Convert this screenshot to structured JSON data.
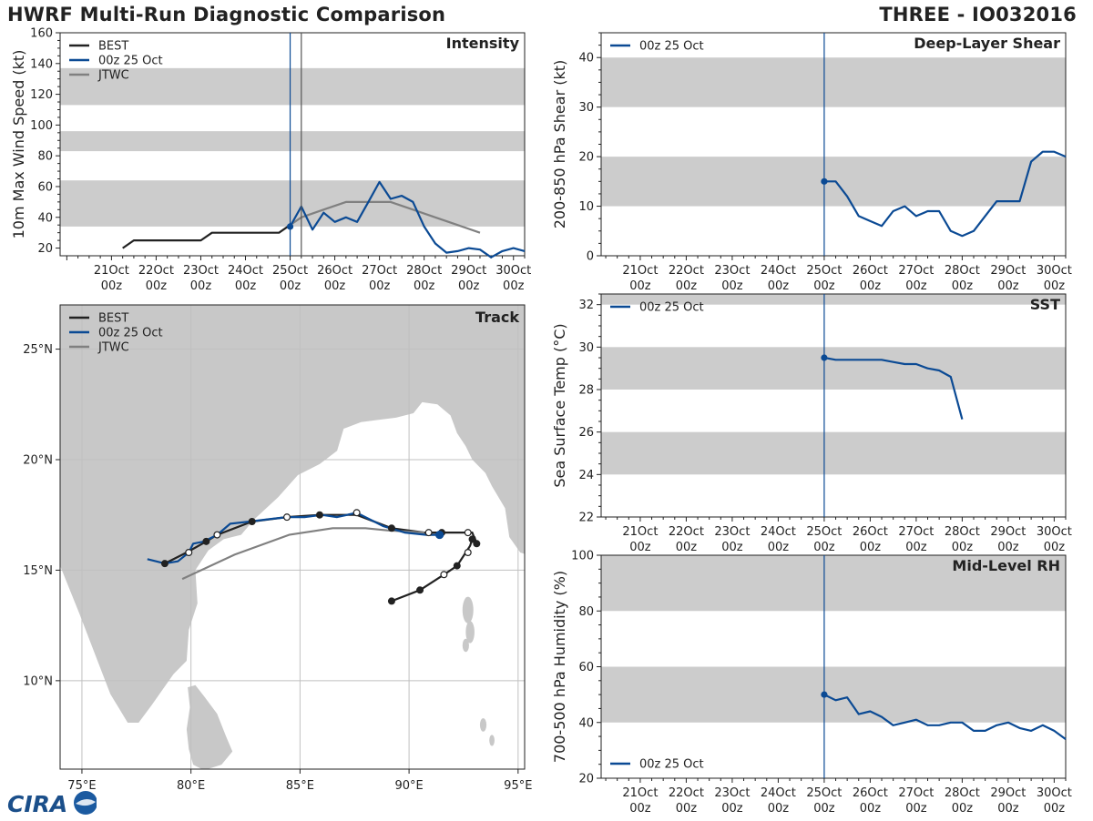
{
  "header": {
    "title_left": "HWRF Multi-Run Diagnostic Comparison",
    "title_right": "THREE - IO032016"
  },
  "logo": {
    "text": "CIRA"
  },
  "colors": {
    "best": "#222222",
    "run": "#0b4a94",
    "jtwc": "#808080",
    "band": "#cccccc",
    "land": "#c8c8c8",
    "grid": "#c0c0c0"
  },
  "time_ticks": [
    {
      "top": "21Oct",
      "bottom": "00z"
    },
    {
      "top": "22Oct",
      "bottom": "00z"
    },
    {
      "top": "23Oct",
      "bottom": "00z"
    },
    {
      "top": "24Oct",
      "bottom": "00z"
    },
    {
      "top": "25Oct",
      "bottom": "00z"
    },
    {
      "top": "26Oct",
      "bottom": "00z"
    },
    {
      "top": "27Oct",
      "bottom": "00z"
    },
    {
      "top": "28Oct",
      "bottom": "00z"
    },
    {
      "top": "29Oct",
      "bottom": "00z"
    },
    {
      "top": "30Oct",
      "bottom": "00z"
    }
  ],
  "chart_data": [
    {
      "id": "intensity",
      "type": "line",
      "title": "Intensity",
      "ylabel": "10m Max Wind Speed (kt)",
      "xlim": [
        19.85,
        30.25
      ],
      "ylim": [
        15,
        160
      ],
      "yticks": [
        20,
        40,
        60,
        80,
        100,
        120,
        140,
        160
      ],
      "bands": [
        [
          34,
          64
        ],
        [
          83,
          96
        ],
        [
          113,
          137
        ]
      ],
      "vlines": [
        25.0,
        25.25
      ],
      "legend": [
        "BEST",
        "00z 25 Oct",
        "JTWC"
      ],
      "series": [
        {
          "name": "BEST",
          "style": "best",
          "x": [
            21.25,
            21.5,
            21.75,
            22.0,
            22.25,
            22.5,
            22.75,
            23.0,
            23.25,
            23.5,
            23.75,
            24.0,
            24.25,
            24.5,
            24.75,
            25.0
          ],
          "y": [
            20,
            25,
            25,
            25,
            25,
            25,
            25,
            25,
            30,
            30,
            30,
            30,
            30,
            30,
            30,
            35
          ]
        },
        {
          "name": "JTWC",
          "style": "jtwc",
          "x": [
            25.0,
            25.25,
            25.75,
            26.25,
            26.75,
            27.25,
            27.75,
            28.25,
            28.75,
            29.25
          ],
          "y": [
            35,
            40,
            45,
            50,
            50,
            50,
            45,
            40,
            35,
            30
          ]
        },
        {
          "name": "00z 25 Oct",
          "style": "run",
          "marker_first": true,
          "x": [
            25.0,
            25.25,
            25.5,
            25.75,
            26.0,
            26.25,
            26.5,
            26.75,
            27.0,
            27.25,
            27.5,
            27.75,
            28.0,
            28.25,
            28.5,
            28.75,
            29.0,
            29.25,
            29.5,
            29.75,
            30.0,
            30.25
          ],
          "y": [
            34,
            47,
            32,
            43,
            37,
            40,
            37,
            50,
            63,
            52,
            54,
            50,
            34,
            23,
            17,
            18,
            20,
            19,
            14,
            18,
            20,
            18
          ]
        }
      ]
    },
    {
      "id": "track",
      "type": "line",
      "title": "Track",
      "xlim": [
        74,
        95.3
      ],
      "ylim": [
        6,
        27
      ],
      "xticks": [
        75,
        80,
        85,
        90,
        95
      ],
      "xtick_labels": [
        "75°E",
        "80°E",
        "85°E",
        "90°E",
        "95°E"
      ],
      "yticks": [
        10,
        15,
        20,
        25
      ],
      "ytick_labels": [
        "10°N",
        "15°N",
        "20°N",
        "25°N"
      ],
      "legend": [
        "BEST",
        "00z 25 Oct",
        "JTWC"
      ],
      "series": [
        {
          "name": "BEST",
          "style": "best",
          "lon": [
            89.2,
            90.5,
            91.6,
            92.2,
            92.6,
            92.8,
            92.9,
            93.0,
            93.1,
            92.9,
            92.7,
            91.5,
            90.7,
            89.2,
            87.6,
            85.9,
            84.4,
            82.8,
            81.2,
            80.7,
            79.8,
            78.8
          ],
          "lat": [
            13.6,
            14.1,
            14.8,
            15.2,
            15.8,
            16.1,
            16.4,
            16.5,
            16.2,
            16.7,
            16.7,
            16.7,
            16.7,
            16.9,
            17.5,
            17.5,
            17.4,
            17.2,
            16.6,
            16.3,
            15.8,
            15.3
          ],
          "markers": [
            [
              89.2,
              13.6,
              "f"
            ],
            [
              90.5,
              14.1,
              "f"
            ],
            [
              91.6,
              14.8,
              "o"
            ],
            [
              92.2,
              15.2,
              "f"
            ],
            [
              92.7,
              15.8,
              "o"
            ],
            [
              92.9,
              16.4,
              "f"
            ],
            [
              93.1,
              16.2,
              "f"
            ],
            [
              92.7,
              16.7,
              "o"
            ],
            [
              91.5,
              16.7,
              "f"
            ]
          ]
        },
        {
          "name": "JTWC",
          "style": "jtwc",
          "lon": [
            90.7,
            89.0,
            88.0,
            86.5,
            84.5,
            82.0,
            79.6
          ],
          "lat": [
            16.7,
            16.8,
            16.9,
            16.9,
            16.6,
            15.7,
            14.6
          ]
        },
        {
          "name": "00z 25 Oct",
          "style": "run",
          "lon": [
            91.4,
            90.8,
            89.8,
            88.8,
            87.6,
            86.7,
            86.0,
            85.2,
            84.4,
            83.5,
            82.7,
            81.8,
            81.2,
            80.6,
            80.1,
            79.9,
            79.4,
            78.8,
            78.0
          ],
          "lat": [
            16.6,
            16.6,
            16.7,
            17.0,
            17.6,
            17.4,
            17.5,
            17.4,
            17.4,
            17.3,
            17.2,
            17.1,
            16.6,
            16.3,
            16.2,
            15.8,
            15.4,
            15.3,
            15.5
          ],
          "markers": [
            [
              91.4,
              16.6,
              "r"
            ],
            [
              89.2,
              16.9,
              "f"
            ],
            [
              87.6,
              17.6,
              "o"
            ],
            [
              85.9,
              17.5,
              "f"
            ],
            [
              84.4,
              17.4,
              "o"
            ],
            [
              82.8,
              17.2,
              "f"
            ],
            [
              81.2,
              16.6,
              "o"
            ],
            [
              80.7,
              16.3,
              "f"
            ],
            [
              79.9,
              15.8,
              "o"
            ],
            [
              78.8,
              15.3,
              "f"
            ],
            [
              90.9,
              16.7,
              "o"
            ]
          ]
        }
      ]
    },
    {
      "id": "shear",
      "type": "line",
      "title": "Deep-Layer Shear",
      "ylabel": "200-850 hPa Shear (kt)",
      "xlim": [
        20.15,
        30.25
      ],
      "ylim": [
        0,
        45
      ],
      "yticks": [
        0,
        10,
        20,
        30,
        40
      ],
      "bands": [
        [
          10,
          20
        ],
        [
          30,
          40
        ]
      ],
      "vlines": [
        25.0
      ],
      "legend": [
        "00z 25 Oct"
      ],
      "series": [
        {
          "name": "00z 25 Oct",
          "style": "run",
          "marker_first": true,
          "x": [
            25.0,
            25.25,
            25.5,
            25.75,
            26.0,
            26.25,
            26.5,
            26.75,
            27.0,
            27.25,
            27.5,
            27.75,
            28.0,
            28.25,
            28.5,
            28.75,
            29.0,
            29.25,
            29.5,
            29.75,
            30.0,
            30.25
          ],
          "y": [
            15,
            15,
            12,
            8,
            7,
            6,
            9,
            10,
            8,
            9,
            9,
            5,
            4,
            5,
            8,
            11,
            11,
            11,
            19,
            21,
            21,
            20
          ]
        }
      ]
    },
    {
      "id": "sst",
      "type": "line",
      "title": "SST",
      "ylabel": "Sea Surface Temp (°C)",
      "xlim": [
        20.15,
        30.25
      ],
      "ylim": [
        22,
        32.5
      ],
      "yticks": [
        22,
        24,
        26,
        28,
        30,
        32
      ],
      "bands": [
        [
          24,
          26
        ],
        [
          28,
          30
        ],
        [
          32,
          34
        ]
      ],
      "vlines": [
        25.0
      ],
      "legend": [
        "00z 25 Oct"
      ],
      "series": [
        {
          "name": "00z 25 Oct",
          "style": "run",
          "marker_first": true,
          "x": [
            25.0,
            25.25,
            25.5,
            25.75,
            26.0,
            26.25,
            26.5,
            26.75,
            27.0,
            27.25,
            27.5,
            27.75,
            28.0
          ],
          "y": [
            29.5,
            29.4,
            29.4,
            29.4,
            29.4,
            29.4,
            29.3,
            29.2,
            29.2,
            29.0,
            28.9,
            28.6,
            26.6
          ]
        }
      ]
    },
    {
      "id": "rh",
      "type": "line",
      "title": "Mid-Level RH",
      "ylabel": "700-500 hPa Humidity (%)",
      "xlim": [
        20.15,
        30.25
      ],
      "ylim": [
        20,
        100
      ],
      "yticks": [
        20,
        40,
        60,
        80,
        100
      ],
      "bands": [
        [
          40,
          60
        ],
        [
          80,
          100
        ]
      ],
      "vlines": [
        25.0
      ],
      "legend": [
        "00z 25 Oct"
      ],
      "series": [
        {
          "name": "00z 25 Oct",
          "style": "run",
          "marker_first": true,
          "x": [
            25.0,
            25.25,
            25.5,
            25.75,
            26.0,
            26.25,
            26.5,
            26.75,
            27.0,
            27.25,
            27.5,
            27.75,
            28.0,
            28.25,
            28.5,
            28.75,
            29.0,
            29.25,
            29.5,
            29.75,
            30.0,
            30.25
          ],
          "y": [
            50,
            48,
            49,
            43,
            44,
            42,
            39,
            40,
            41,
            39,
            39,
            40,
            40,
            37,
            37,
            39,
            40,
            38,
            37,
            39,
            37,
            34
          ]
        }
      ]
    }
  ]
}
